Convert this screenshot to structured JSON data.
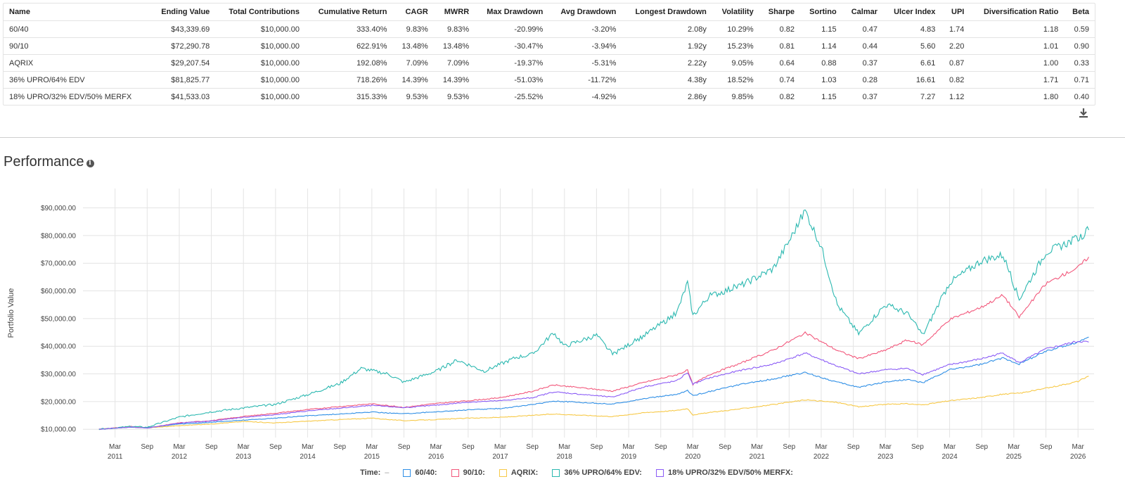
{
  "table": {
    "headers": [
      "Name",
      "Ending Value",
      "Total Contributions",
      "Cumulative Return",
      "CAGR",
      "MWRR",
      "Max Drawdown",
      "Avg Drawdown",
      "Longest Drawdown",
      "Volatility",
      "Sharpe",
      "Sortino",
      "Calmar",
      "Ulcer Index",
      "UPI",
      "Diversification Ratio",
      "Beta"
    ],
    "rows": [
      [
        "60/40",
        "$43,339.69",
        "$10,000.00",
        "333.40%",
        "9.83%",
        "9.83%",
        "-20.99%",
        "-3.20%",
        "2.08y",
        "10.29%",
        "0.82",
        "1.15",
        "0.47",
        "4.83",
        "1.74",
        "1.18",
        "0.59"
      ],
      [
        "90/10",
        "$72,290.78",
        "$10,000.00",
        "622.91%",
        "13.48%",
        "13.48%",
        "-30.47%",
        "-3.94%",
        "1.92y",
        "15.23%",
        "0.81",
        "1.14",
        "0.44",
        "5.60",
        "2.20",
        "1.01",
        "0.90"
      ],
      [
        "AQRIX",
        "$29,207.54",
        "$10,000.00",
        "192.08%",
        "7.09%",
        "7.09%",
        "-19.37%",
        "-5.31%",
        "2.22y",
        "9.05%",
        "0.64",
        "0.88",
        "0.37",
        "6.61",
        "0.87",
        "1.00",
        "0.33"
      ],
      [
        "36% UPRO/64% EDV",
        "$81,825.77",
        "$10,000.00",
        "718.26%",
        "14.39%",
        "14.39%",
        "-51.03%",
        "-11.72%",
        "4.38y",
        "18.52%",
        "0.74",
        "1.03",
        "0.28",
        "16.61",
        "0.82",
        "1.71",
        "0.71"
      ],
      [
        "18% UPRO/32% EDV/50% MERFX",
        "$41,533.03",
        "$10,000.00",
        "315.33%",
        "9.53%",
        "9.53%",
        "-25.52%",
        "-4.92%",
        "2.86y",
        "9.85%",
        "0.82",
        "1.15",
        "0.37",
        "7.27",
        "1.12",
        "1.80",
        "0.40"
      ]
    ]
  },
  "download_icon": "download-icon",
  "section_title": "Performance",
  "info_icon": "info-icon",
  "chart_data": {
    "type": "line",
    "ylabel": "Portfolio Value",
    "ylim": [
      7000,
      97000
    ],
    "xlim": [
      "2010-09",
      "2026-06"
    ],
    "y_ticks": [
      10000,
      20000,
      30000,
      40000,
      50000,
      60000,
      70000,
      80000,
      90000
    ],
    "y_tick_labels": [
      "$10,000.00",
      "$20,000.00",
      "$30,000.00",
      "$40,000.00",
      "$50,000.00",
      "$60,000.00",
      "$70,000.00",
      "$80,000.00",
      "$90,000.00"
    ],
    "x_ticks": [
      {
        "date": "2011-03",
        "month": "Mar",
        "year": "2011"
      },
      {
        "date": "2011-09",
        "month": "Sep",
        "year": ""
      },
      {
        "date": "2012-03",
        "month": "Mar",
        "year": "2012"
      },
      {
        "date": "2012-09",
        "month": "Sep",
        "year": ""
      },
      {
        "date": "2013-03",
        "month": "Mar",
        "year": "2013"
      },
      {
        "date": "2013-09",
        "month": "Sep",
        "year": ""
      },
      {
        "date": "2014-03",
        "month": "Mar",
        "year": "2014"
      },
      {
        "date": "2014-09",
        "month": "Sep",
        "year": ""
      },
      {
        "date": "2015-03",
        "month": "Mar",
        "year": "2015"
      },
      {
        "date": "2015-09",
        "month": "Sep",
        "year": ""
      },
      {
        "date": "2016-03",
        "month": "Mar",
        "year": "2016"
      },
      {
        "date": "2016-09",
        "month": "Sep",
        "year": ""
      },
      {
        "date": "2017-03",
        "month": "Mar",
        "year": "2017"
      },
      {
        "date": "2017-09",
        "month": "Sep",
        "year": ""
      },
      {
        "date": "2018-03",
        "month": "Mar",
        "year": "2018"
      },
      {
        "date": "2018-09",
        "month": "Sep",
        "year": ""
      },
      {
        "date": "2019-03",
        "month": "Mar",
        "year": "2019"
      },
      {
        "date": "2019-09",
        "month": "Sep",
        "year": ""
      },
      {
        "date": "2020-03",
        "month": "Mar",
        "year": "2020"
      },
      {
        "date": "2020-09",
        "month": "Sep",
        "year": ""
      },
      {
        "date": "2021-03",
        "month": "Mar",
        "year": "2021"
      },
      {
        "date": "2021-09",
        "month": "Sep",
        "year": ""
      },
      {
        "date": "2022-03",
        "month": "Mar",
        "year": "2022"
      },
      {
        "date": "2022-09",
        "month": "Sep",
        "year": ""
      },
      {
        "date": "2023-03",
        "month": "Mar",
        "year": "2023"
      },
      {
        "date": "2023-09",
        "month": "Sep",
        "year": ""
      },
      {
        "date": "2024-03",
        "month": "Mar",
        "year": "2024"
      },
      {
        "date": "2024-09",
        "month": "Sep",
        "year": ""
      },
      {
        "date": "2025-03",
        "month": "Mar",
        "year": "2025"
      },
      {
        "date": "2025-09",
        "month": "Sep",
        "year": ""
      },
      {
        "date": "2026-03",
        "month": "Mar",
        "year": "2026"
      }
    ],
    "grid": true,
    "legend_position": "bottom",
    "legend_time_label": "Time:",
    "legend_time_value": "–",
    "series": [
      {
        "name": "60/40:",
        "color": "#2f8fe6",
        "x": [
          "2010-12",
          "2011-06",
          "2011-09",
          "2012-03",
          "2012-09",
          "2013-03",
          "2013-09",
          "2014-03",
          "2014-09",
          "2015-03",
          "2015-09",
          "2016-03",
          "2016-09",
          "2017-03",
          "2017-09",
          "2018-01",
          "2018-12",
          "2019-06",
          "2019-12",
          "2020-02",
          "2020-03",
          "2020-06",
          "2020-12",
          "2021-06",
          "2021-12",
          "2022-06",
          "2022-10",
          "2023-03",
          "2023-07",
          "2023-10",
          "2024-03",
          "2024-09",
          "2025-01",
          "2025-04",
          "2025-09",
          "2026-03",
          "2026-05"
        ],
        "y": [
          10000,
          10800,
          10500,
          11900,
          12500,
          13300,
          14000,
          14900,
          15500,
          16200,
          15600,
          16300,
          17000,
          17500,
          18900,
          20200,
          19100,
          21100,
          22600,
          24000,
          22100,
          23600,
          26200,
          28200,
          30500,
          27000,
          25200,
          27100,
          28000,
          26800,
          31500,
          33500,
          35800,
          33600,
          38200,
          41500,
          43300
        ]
      },
      {
        "name": "90/10:",
        "color": "#f2577b",
        "x": [
          "2010-12",
          "2011-06",
          "2011-09",
          "2012-03",
          "2012-09",
          "2013-03",
          "2013-09",
          "2014-03",
          "2014-09",
          "2015-03",
          "2015-09",
          "2016-03",
          "2016-09",
          "2017-03",
          "2017-09",
          "2018-01",
          "2018-12",
          "2019-06",
          "2019-12",
          "2020-02",
          "2020-03",
          "2020-06",
          "2020-12",
          "2021-06",
          "2021-12",
          "2022-06",
          "2022-10",
          "2023-03",
          "2023-07",
          "2023-10",
          "2024-03",
          "2024-09",
          "2025-01",
          "2025-04",
          "2025-09",
          "2026-03",
          "2026-05"
        ],
        "y": [
          10000,
          11000,
          10400,
          12300,
          13100,
          14600,
          15800,
          17100,
          18200,
          19200,
          17900,
          19300,
          20300,
          21400,
          23700,
          26000,
          23800,
          27000,
          29700,
          31300,
          26200,
          29700,
          33900,
          38600,
          44800,
          38500,
          35500,
          38600,
          42200,
          40500,
          49700,
          54200,
          58500,
          50500,
          62600,
          68500,
          72300
        ]
      },
      {
        "name": "AQRIX:",
        "color": "#f7c948",
        "x": [
          "2010-12",
          "2011-06",
          "2011-09",
          "2012-03",
          "2012-09",
          "2013-03",
          "2013-09",
          "2014-03",
          "2014-09",
          "2015-03",
          "2015-09",
          "2016-03",
          "2016-09",
          "2017-03",
          "2017-09",
          "2018-01",
          "2018-12",
          "2019-06",
          "2019-12",
          "2020-02",
          "2020-03",
          "2020-06",
          "2020-12",
          "2021-06",
          "2021-12",
          "2022-06",
          "2022-10",
          "2023-03",
          "2023-07",
          "2023-10",
          "2024-03",
          "2024-09",
          "2025-01",
          "2025-04",
          "2025-09",
          "2026-03",
          "2026-05"
        ],
        "y": [
          10000,
          10900,
          10500,
          11300,
          11900,
          12800,
          12300,
          12900,
          13500,
          14000,
          13100,
          13500,
          14000,
          14300,
          15000,
          15500,
          14600,
          16000,
          16800,
          17500,
          15200,
          16000,
          17400,
          18900,
          20600,
          19700,
          18100,
          19000,
          19200,
          18800,
          20300,
          21500,
          22700,
          23000,
          24800,
          27300,
          29200
        ]
      },
      {
        "name": "36% UPRO/64% EDV:",
        "color": "#2bb8b0",
        "x": [
          "2010-12",
          "2011-06",
          "2011-09",
          "2012-03",
          "2012-09",
          "2013-03",
          "2013-09",
          "2014-03",
          "2014-09",
          "2015-01",
          "2015-06",
          "2015-09",
          "2016-03",
          "2016-07",
          "2016-12",
          "2017-06",
          "2017-09",
          "2018-01",
          "2018-03",
          "2018-09",
          "2018-12",
          "2019-06",
          "2019-09",
          "2019-12",
          "2020-02",
          "2020-03",
          "2020-06",
          "2020-12",
          "2021-06",
          "2021-09",
          "2021-12",
          "2022-03",
          "2022-06",
          "2022-10",
          "2023-03",
          "2023-07",
          "2023-10",
          "2024-03",
          "2024-09",
          "2025-01",
          "2025-04",
          "2025-09",
          "2026-03",
          "2026-05"
        ],
        "y": [
          10000,
          11000,
          10700,
          14400,
          16300,
          17700,
          19000,
          22500,
          26500,
          32000,
          30000,
          27000,
          31000,
          35000,
          31000,
          36000,
          37000,
          45000,
          40000,
          44000,
          37000,
          44000,
          48000,
          52000,
          63000,
          51000,
          58000,
          62000,
          68000,
          78000,
          89000,
          76000,
          55000,
          44500,
          55000,
          52000,
          44000,
          63000,
          71000,
          73000,
          57000,
          74000,
          79000,
          82000
        ]
      },
      {
        "name": "18% UPRO/32% EDV/50% MERFX:",
        "color": "#8b5cf6",
        "x": [
          "2010-12",
          "2011-06",
          "2011-09",
          "2012-03",
          "2012-09",
          "2013-03",
          "2013-09",
          "2014-03",
          "2014-09",
          "2015-03",
          "2015-09",
          "2016-03",
          "2016-09",
          "2017-03",
          "2017-09",
          "2018-01",
          "2018-12",
          "2019-06",
          "2019-12",
          "2020-02",
          "2020-03",
          "2020-06",
          "2020-12",
          "2021-06",
          "2021-12",
          "2022-06",
          "2022-10",
          "2023-03",
          "2023-07",
          "2023-10",
          "2024-03",
          "2024-09",
          "2025-01",
          "2025-04",
          "2025-09",
          "2026-03",
          "2026-05"
        ],
        "y": [
          10000,
          10800,
          10400,
          12200,
          13000,
          14300,
          15300,
          16600,
          17600,
          18600,
          17800,
          18700,
          19800,
          20300,
          21400,
          23500,
          21600,
          25400,
          27500,
          30500,
          26300,
          28500,
          31300,
          33500,
          37500,
          32800,
          30000,
          31500,
          32000,
          29800,
          33300,
          35500,
          37600,
          34000,
          39000,
          41800,
          41500
        ]
      }
    ]
  }
}
